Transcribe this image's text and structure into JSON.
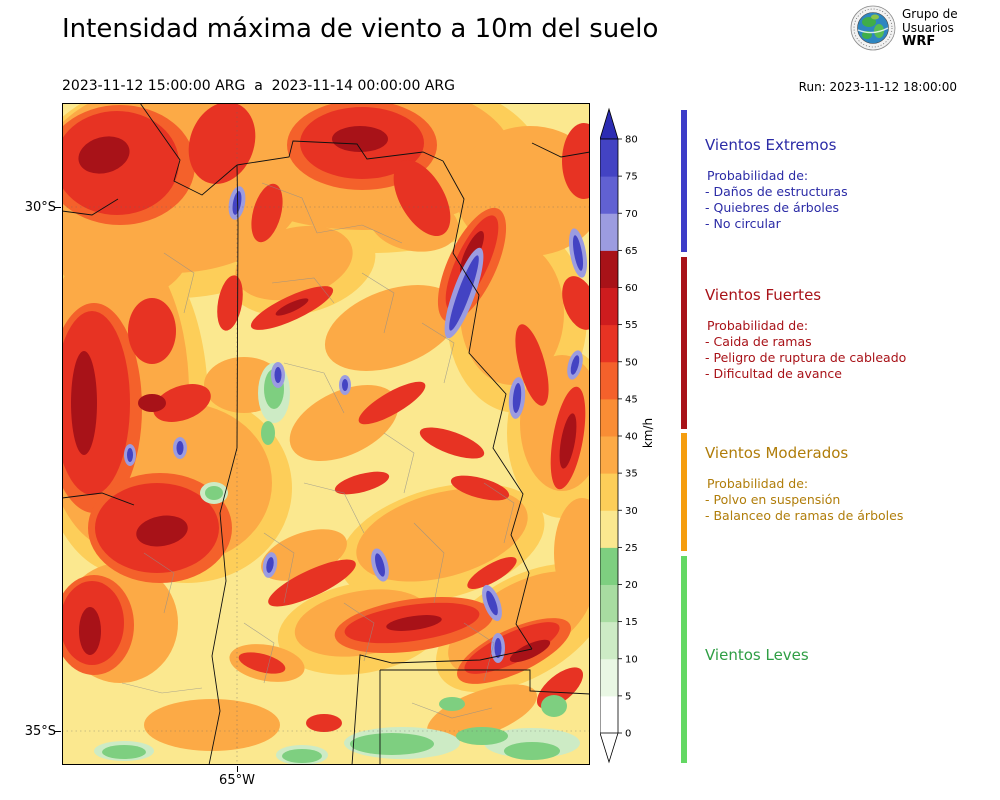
{
  "header": {
    "title": "Intensidad máxima de viento a 10m del suelo",
    "period": "2023-11-12 15:00:00 ARG  a  2023-11-14 00:00:00 ARG",
    "run": "Run: 2023-11-12 18:00:00",
    "logo": {
      "line1": "Grupo de",
      "line2": "Usuarios",
      "line3": "WRF"
    }
  },
  "map": {
    "lat_labels": [
      "30°S",
      "35°S"
    ],
    "lon_labels": [
      "65°W"
    ]
  },
  "colorbar": {
    "unit": "km/h",
    "tick_labels": [
      "0",
      "5",
      "10",
      "15",
      "20",
      "25",
      "30",
      "35",
      "40",
      "45",
      "50",
      "55",
      "60",
      "65",
      "70",
      "75",
      "80"
    ],
    "segment_colors": [
      "#ffffff",
      "#e9f7e4",
      "#cdebc5",
      "#a8dca1",
      "#7ecf80",
      "#fbe88f",
      "#fdce59",
      "#fcaa46",
      "#f98d35",
      "#f4612b",
      "#e73323",
      "#ce1c1e",
      "#a81218",
      "#9c9ce0",
      "#6161d2",
      "#4343c3"
    ],
    "over_color": "#2d2db3",
    "under_color": "#ffffff"
  },
  "legend": {
    "sections": [
      {
        "title": "Vientos Extremos",
        "bar_color": "#3c3cc8",
        "text_color": "#2b2ba6",
        "intro": "Probabilidad de:",
        "items": [
          "- Daños de estructuras",
          "- Quiebres de árboles",
          "- No circular"
        ]
      },
      {
        "title": "Vientos Fuertes",
        "bar_color": "#a81218",
        "text_color": "#a81218",
        "intro": "Probabilidad de:",
        "items": [
          "- Caida de ramas",
          "- Peligro de ruptura de cableado",
          "- Dificultad de avance"
        ]
      },
      {
        "title": "Vientos Moderados",
        "bar_color": "#f59d0e",
        "text_color": "#b07d0a",
        "intro": "Probabilidad de:",
        "items": [
          "- Polvo en suspensión",
          "- Balanceo de ramas de árboles"
        ]
      },
      {
        "title": "Vientos Leves",
        "bar_color": "#63d863",
        "text_color": "#2f9e44",
        "intro": "",
        "items": []
      }
    ]
  }
}
